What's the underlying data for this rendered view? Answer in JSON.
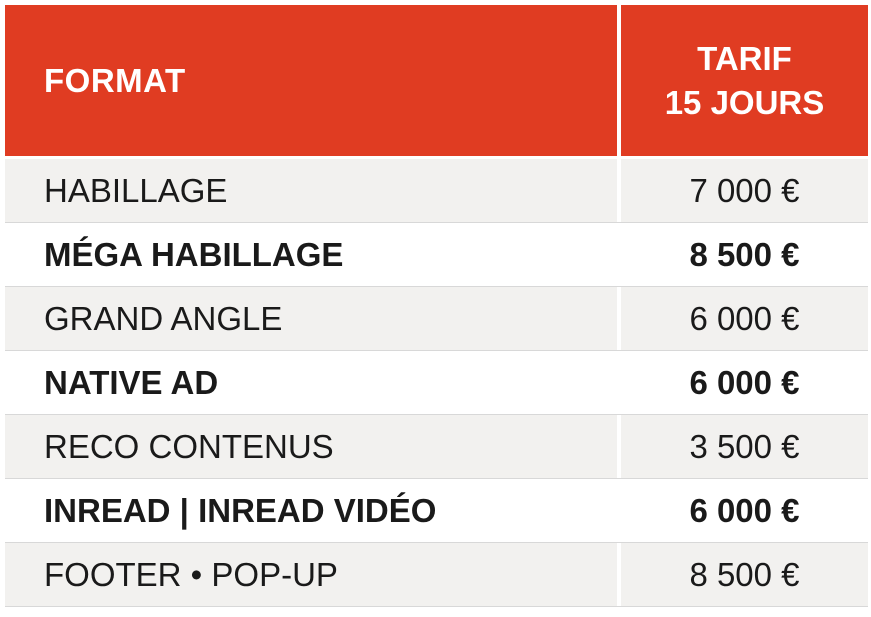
{
  "header": {
    "format_label": "FORMAT",
    "tarif_line1": "TARIF",
    "tarif_line2": "15 JOURS"
  },
  "rows": [
    {
      "name": "HABILLAGE",
      "price": "7 000 €",
      "bold": false
    },
    {
      "name": "MÉGA HABILLAGE",
      "price": "8 500 €",
      "bold": true
    },
    {
      "name": "GRAND ANGLE",
      "price": "6 000 €",
      "bold": false
    },
    {
      "name": "NATIVE AD",
      "price": "6 000 €",
      "bold": true
    },
    {
      "name": "RECO CONTENUS",
      "price": "3 500 €",
      "bold": false
    },
    {
      "name": "INREAD | INREAD VIDÉO",
      "price": "6 000 €",
      "bold": true
    },
    {
      "name": "FOOTER • POP-UP",
      "price": "8 500 €",
      "bold": false
    }
  ],
  "colors": {
    "header_bg": "#e03c22",
    "header_text": "#ffffff",
    "shaded_row_bg": "#f2f1ef",
    "text": "#1a1a1a"
  }
}
